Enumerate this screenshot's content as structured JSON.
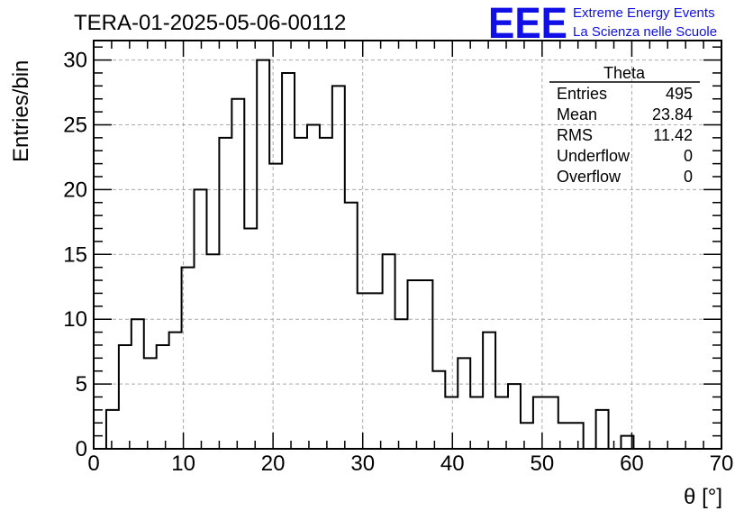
{
  "header": {
    "title": "TERA-01-2025-05-06-00112",
    "logo_text": "EEE",
    "logo_line1": "Extreme Energy Events",
    "logo_line2": "La Scienza nelle Scuole",
    "logo_color": "#1010e6"
  },
  "stats_box": {
    "title": "Theta",
    "rows": [
      {
        "label": "Entries",
        "value": "495"
      },
      {
        "label": "Mean",
        "value": "23.84"
      },
      {
        "label": "RMS",
        "value": "11.42"
      },
      {
        "label": "Underflow",
        "value": "0"
      },
      {
        "label": "Overflow",
        "value": "0"
      }
    ]
  },
  "chart_data": {
    "type": "bar",
    "histogram": true,
    "xlabel": "θ [°]",
    "ylabel": "Entries/bin",
    "xlim": [
      0,
      70
    ],
    "ylim": [
      0,
      31.5
    ],
    "x_ticks": [
      0,
      10,
      20,
      30,
      40,
      50,
      60,
      70
    ],
    "y_ticks": [
      0,
      5,
      10,
      15,
      20,
      25,
      30
    ],
    "grid": true,
    "bin_width": 1.4,
    "bin_start": 0,
    "values": [
      0,
      3,
      8,
      10,
      7,
      8,
      9,
      14,
      20,
      15,
      24,
      27,
      17,
      30,
      22,
      29,
      24,
      25,
      24,
      28,
      19,
      12,
      12,
      15,
      10,
      13,
      13,
      6,
      4,
      7,
      4,
      9,
      4,
      5,
      2,
      4,
      4,
      2,
      2,
      0,
      3,
      0,
      1,
      0,
      0,
      0,
      0,
      0,
      0,
      0
    ]
  }
}
